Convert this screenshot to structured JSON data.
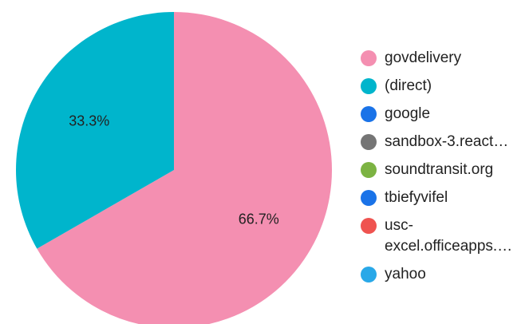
{
  "chart_data": {
    "type": "pie",
    "slices": [
      {
        "name": "govdelivery",
        "value": 66.7,
        "label": "66.7%",
        "color": "#F48FB1"
      },
      {
        "name": "(direct)",
        "value": 33.3,
        "label": "33.3%",
        "color": "#00B5CC"
      }
    ],
    "legend": {
      "placement": "right",
      "entries": [
        {
          "label": "govdelivery",
          "color": "#F48FB1"
        },
        {
          "label": "(direct)",
          "color": "#00B5CC"
        },
        {
          "label": "google",
          "color": "#1A73E8"
        },
        {
          "label": "sandbox-3.react…",
          "color": "#757575"
        },
        {
          "label": "soundtransit.org",
          "color": "#7CB342"
        },
        {
          "label": "tbiefyvifel",
          "color": "#1A73E8"
        },
        {
          "label": "usc-excel.officeapps.…",
          "color": "#EF5350"
        },
        {
          "label": "yahoo",
          "color": "#29A8E8"
        }
      ]
    }
  }
}
